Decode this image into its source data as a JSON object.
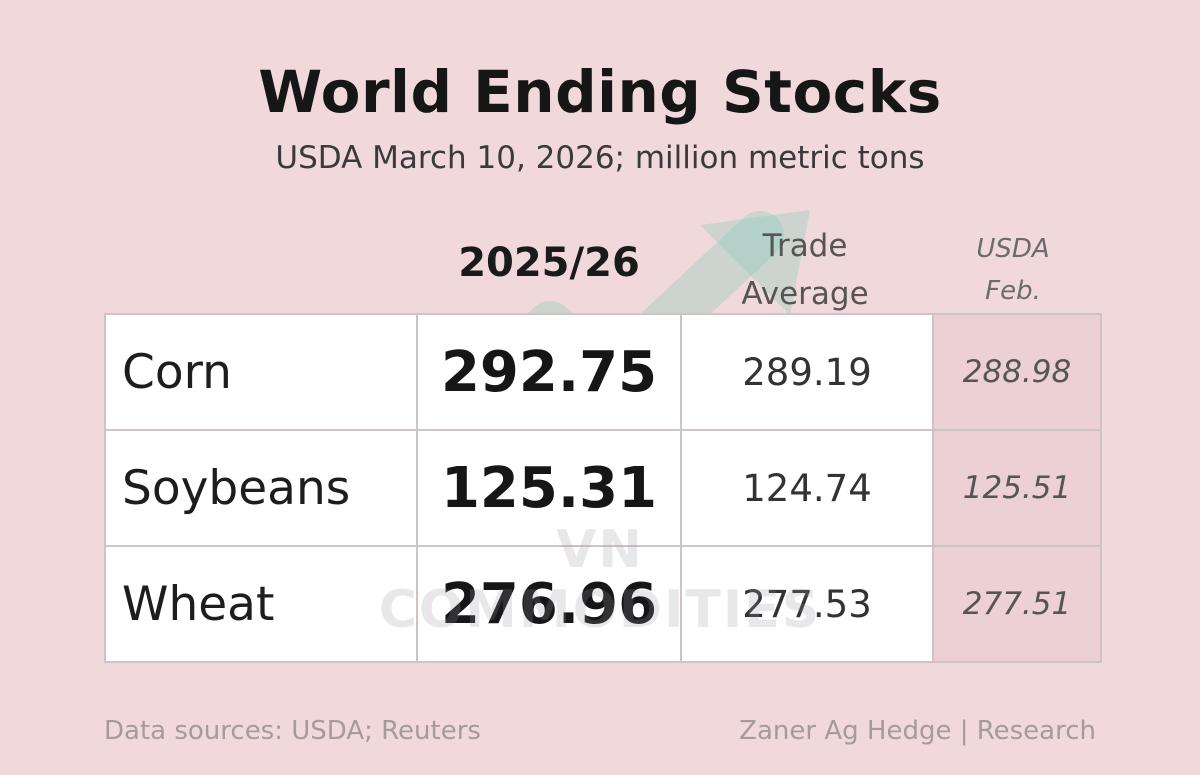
{
  "chart_data": {
    "type": "table",
    "title": "World Ending Stocks",
    "subtitle": "USDA March 10, 2026; million metric tons",
    "columns": {
      "main": "2025/26",
      "trade_line1": "Trade",
      "trade_line2": "Average",
      "usda_line1": "USDA",
      "usda_line2": "Feb."
    },
    "rows": [
      {
        "name": "Corn",
        "main": "292.75",
        "trade": "289.19",
        "usda": "288.98"
      },
      {
        "name": "Soybeans",
        "main": "125.31",
        "trade": "124.74",
        "usda": "125.51"
      },
      {
        "name": "Wheat",
        "main": "276.96",
        "trade": "277.53",
        "usda": "277.51"
      }
    ]
  },
  "watermark": "VN COMMODITIES",
  "footer": {
    "left": "Data sources: USDA; Reuters",
    "right": "Zaner Ag Hedge | Research"
  },
  "colors": {
    "background": "#f1d9db",
    "usda_cell": "#ecd0d3",
    "watermark_arrow": "#8fd3c0"
  }
}
